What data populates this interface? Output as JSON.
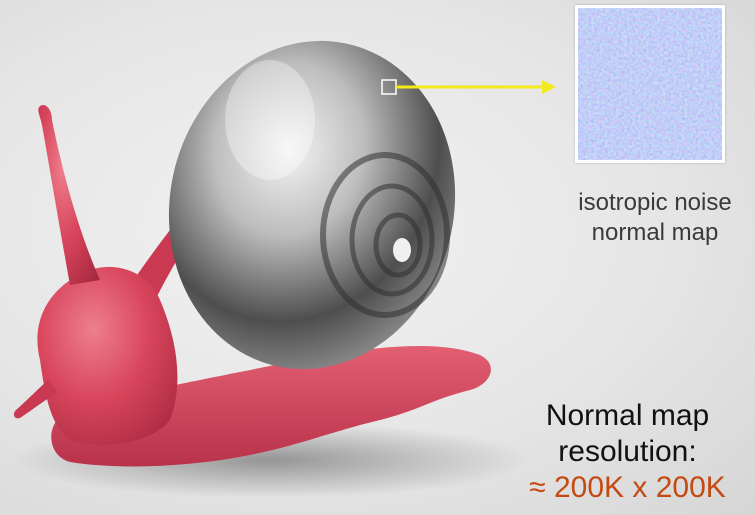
{
  "caption": {
    "line1": "isotropic noise",
    "line2": "normal map"
  },
  "resolution": {
    "line1": "Normal map",
    "line2": "resolution:",
    "value": "≈ 200K x 200K"
  },
  "colors": {
    "snail_body": "#d8455c",
    "shell": "#b8b8b8",
    "arrow": "#f2ea1c",
    "normal_map": "#8f9ef0",
    "value_text": "#c44a12"
  }
}
